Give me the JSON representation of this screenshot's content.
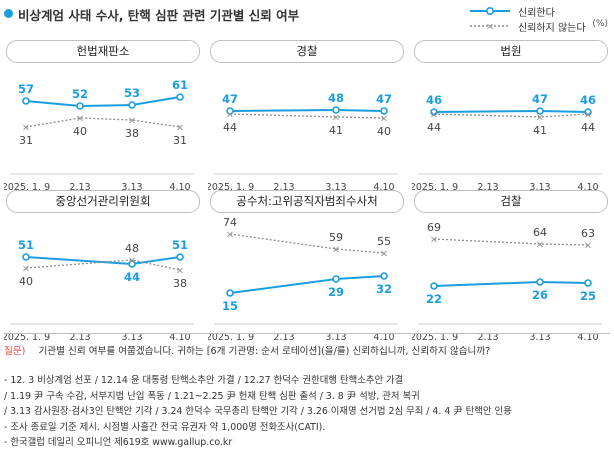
{
  "header": {
    "title": "비상계엄 사태 수사, 탄핵 심판 관련 기관별 신뢰 여부"
  },
  "legend": {
    "trust_label": "신뢰한다",
    "distrust_label": "신뢰하지 않는다",
    "unit": "(%)"
  },
  "colors": {
    "trust": "#1a9ee0",
    "distrust": "#8c8c8c",
    "question_label": "#e8453c"
  },
  "chart_data": [
    {
      "type": "line",
      "title": "헌법재판소",
      "categories": [
        "2025. 1. 9",
        "2.13",
        "3.13",
        "4.10"
      ],
      "series": [
        {
          "name": "신뢰한다",
          "values": [
            57,
            52,
            53,
            61
          ]
        },
        {
          "name": "신뢰하지 않는다",
          "values": [
            31,
            40,
            38,
            31
          ]
        }
      ]
    },
    {
      "type": "line",
      "title": "경찰",
      "categories": [
        "2025. 1. 9",
        "2.13",
        "3.13",
        "4.10"
      ],
      "series": [
        {
          "name": "신뢰한다",
          "values": [
            47,
            null,
            48,
            47
          ]
        },
        {
          "name": "신뢰하지 않는다",
          "values": [
            44,
            null,
            41,
            40
          ]
        }
      ]
    },
    {
      "type": "line",
      "title": "법원",
      "categories": [
        "2025. 1. 9",
        "2.13",
        "3.13",
        "4.10"
      ],
      "series": [
        {
          "name": "신뢰한다",
          "values": [
            46,
            null,
            47,
            46
          ]
        },
        {
          "name": "신뢰하지 않는다",
          "values": [
            44,
            null,
            41,
            44
          ]
        }
      ]
    },
    {
      "type": "line",
      "title": "중앙선거관리위원회",
      "categories": [
        "2025. 1. 9",
        "2.13",
        "3.13",
        "4.10"
      ],
      "series": [
        {
          "name": "신뢰한다",
          "values": [
            51,
            null,
            44,
            51
          ]
        },
        {
          "name": "신뢰하지 않는다",
          "values": [
            40,
            null,
            48,
            38
          ]
        }
      ]
    },
    {
      "type": "line",
      "title": "공수처:고위공직자범죄수사처",
      "categories": [
        "2025. 1. 9",
        "2.13",
        "3.13",
        "4.10"
      ],
      "series": [
        {
          "name": "신뢰한다",
          "values": [
            15,
            null,
            29,
            32
          ]
        },
        {
          "name": "신뢰하지 않는다",
          "values": [
            74,
            null,
            59,
            55
          ]
        }
      ]
    },
    {
      "type": "line",
      "title": "검찰",
      "categories": [
        "2025. 1. 9",
        "2.13",
        "3.13",
        "4.10"
      ],
      "series": [
        {
          "name": "신뢰한다",
          "values": [
            22,
            null,
            26,
            25
          ]
        },
        {
          "name": "신뢰하지 않는다",
          "values": [
            69,
            null,
            64,
            63
          ]
        }
      ]
    }
  ],
  "question": {
    "label": "질문)",
    "text": "기관별 신뢰 여부를 여쭙겠습니다. 귀하는 [6개 기관명: 순서 로테이션](을/를) 신뢰하십니까, 신뢰하지 않습니까?"
  },
  "notes": [
    "- 12. 3 비상계엄 선포 / 12.14 윤 대통령 탄핵소추안 가결 / 12.27 한덕수 권한대행 탄핵소추안 가결",
    "  / 1.19 尹 구속 수감, 서부지법 난입 폭동 / 1.21~2.25 尹 헌재 탄핵 심판 출석 / 3. 8 尹 석방, 관저 복귀",
    "  / 3.13 감사원장·검사3인 탄핵안 기각 / 3.24 한덕수 국무총리 탄핵안 기각 / 3.26 이재명 선거법 2심 무죄 / 4. 4 尹 탄핵안 인용",
    "- 조사 종료일 기준 제시. 시점별 사흘간 전국 유권자 약 1,000명 전화조사(CATI).",
    "- 한국갤럽 데일리 오피니언 제619호 www.gallup.co.kr"
  ]
}
